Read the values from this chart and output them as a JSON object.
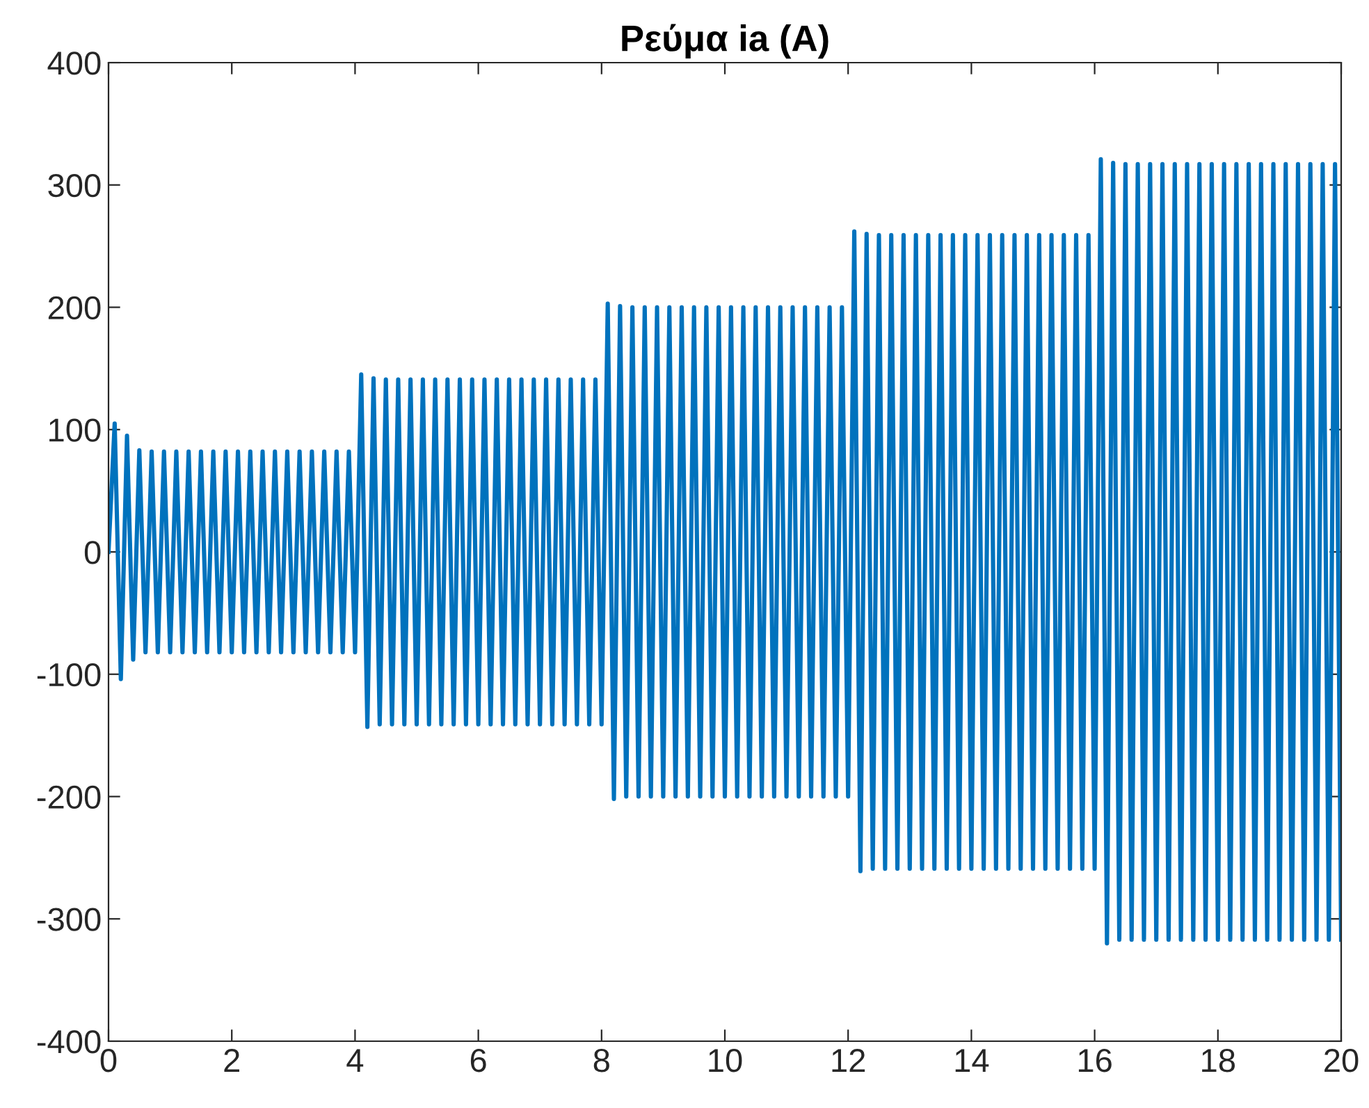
{
  "chart_data": {
    "type": "line",
    "title": "Ρεύμα ia (A)",
    "x": [
      0,
      0.1,
      0.2,
      0.3,
      0.4,
      0.5,
      0.6,
      0.7,
      0.8,
      0.9,
      1,
      1.1,
      1.2,
      1.3,
      1.4,
      1.5,
      1.6,
      1.7,
      1.8,
      1.9,
      2,
      2.1,
      2.2,
      2.3,
      2.4,
      2.5,
      2.6,
      2.7,
      2.8,
      2.9,
      3,
      3.1,
      3.2,
      3.3,
      3.4,
      3.5,
      3.6,
      3.7,
      3.8,
      3.9,
      4,
      4.1,
      4.2,
      4.3,
      4.4,
      4.5,
      4.6,
      4.7,
      4.8,
      4.9,
      5,
      5.1,
      5.2,
      5.3,
      5.4,
      5.5,
      5.6,
      5.7,
      5.8,
      5.9,
      6,
      6.1,
      6.2,
      6.3,
      6.4,
      6.5,
      6.6,
      6.7,
      6.8,
      6.9,
      7,
      7.1,
      7.2,
      7.3,
      7.4,
      7.5,
      7.6,
      7.7,
      7.8,
      7.9,
      8,
      8.1,
      8.2,
      8.3,
      8.4,
      8.5,
      8.6,
      8.7,
      8.8,
      8.9,
      9,
      9.1,
      9.2,
      9.3,
      9.4,
      9.5,
      9.6,
      9.7,
      9.8,
      9.9,
      10,
      10.1,
      10.2,
      10.3,
      10.4,
      10.5,
      10.6,
      10.7,
      10.8,
      10.9,
      11,
      11.1,
      11.2,
      11.3,
      11.4,
      11.5,
      11.6,
      11.7,
      11.8,
      11.9,
      12,
      12.1,
      12.2,
      12.3,
      12.4,
      12.5,
      12.6,
      12.7,
      12.8,
      12.9,
      13,
      13.1,
      13.2,
      13.3,
      13.4,
      13.5,
      13.6,
      13.7,
      13.8,
      13.9,
      14,
      14.1,
      14.2,
      14.3,
      14.4,
      14.5,
      14.6,
      14.7,
      14.8,
      14.9,
      15,
      15.1,
      15.2,
      15.3,
      15.4,
      15.5,
      15.6,
      15.7,
      15.8,
      15.9,
      16,
      16.1,
      16.2,
      16.3,
      16.4,
      16.5,
      16.6,
      16.7,
      16.8,
      16.9,
      17,
      17.1,
      17.2,
      17.3,
      17.4,
      17.5,
      17.6,
      17.7,
      17.8,
      17.9,
      18,
      18.1,
      18.2,
      18.3,
      18.4,
      18.5,
      18.6,
      18.7,
      18.8,
      18.9,
      19,
      19.1,
      19.2,
      19.3,
      19.4,
      19.5,
      19.6,
      19.7,
      19.8,
      19.9,
      20
    ],
    "series": [
      {
        "color": "#0072bd",
        "values": [
          0,
          105,
          -104,
          95,
          -88,
          83,
          -82,
          82,
          -82,
          82,
          -82,
          82,
          -82,
          82,
          -82,
          82,
          -82,
          82,
          -82,
          82,
          -82,
          82,
          -82,
          82,
          -82,
          82,
          -82,
          82,
          -82,
          82,
          -82,
          82,
          -82,
          82,
          -82,
          82,
          -82,
          82,
          -82,
          82,
          -82,
          145,
          -143,
          142,
          -141,
          141,
          -141,
          141,
          -141,
          141,
          -141,
          141,
          -141,
          141,
          -141,
          141,
          -141,
          141,
          -141,
          141,
          -141,
          141,
          -141,
          141,
          -141,
          141,
          -141,
          141,
          -141,
          141,
          -141,
          141,
          -141,
          141,
          -141,
          141,
          -141,
          141,
          -141,
          141,
          -141,
          203,
          -202,
          201,
          -200,
          200,
          -200,
          200,
          -200,
          200,
          -200,
          200,
          -200,
          200,
          -200,
          200,
          -200,
          200,
          -200,
          200,
          -200,
          200,
          -200,
          200,
          -200,
          200,
          -200,
          200,
          -200,
          200,
          -200,
          200,
          -200,
          200,
          -200,
          200,
          -200,
          200,
          -200,
          200,
          -200,
          262,
          -261,
          260,
          -259,
          259,
          -259,
          259,
          -259,
          259,
          -259,
          259,
          -259,
          259,
          -259,
          259,
          -259,
          259,
          -259,
          259,
          -259,
          259,
          -259,
          259,
          -259,
          259,
          -259,
          259,
          -259,
          259,
          -259,
          259,
          -259,
          259,
          -259,
          259,
          -259,
          259,
          -259,
          259,
          -259,
          321,
          -320,
          318,
          -317,
          317,
          -317,
          317,
          -317,
          317,
          -317,
          317,
          -317,
          317,
          -317,
          317,
          -317,
          317,
          -317,
          317,
          -317,
          317,
          -317,
          317,
          -317,
          317,
          -317,
          317,
          -317,
          317,
          -317,
          317,
          -317,
          317,
          -317,
          317,
          -317,
          317,
          -317,
          317,
          -317
        ]
      }
    ],
    "xlim": [
      0,
      20
    ],
    "xticks": [
      0,
      2,
      4,
      6,
      8,
      10,
      12,
      14,
      16,
      18,
      20
    ],
    "ylim": [
      -400,
      400
    ],
    "yticks": [
      -400,
      -300,
      -200,
      -100,
      0,
      100,
      200,
      300,
      400
    ],
    "grid": false,
    "legend": false
  }
}
